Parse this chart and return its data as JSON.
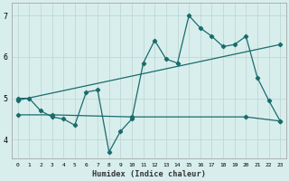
{
  "xlabel": "Humidex (Indice chaleur)",
  "bg_color": "#d8eeed",
  "grid_color": "#c0d8d5",
  "line_color": "#1a6b6b",
  "xlim": [
    -0.5,
    23.5
  ],
  "ylim": [
    3.55,
    7.3
  ],
  "xticks": [
    0,
    1,
    2,
    3,
    4,
    5,
    6,
    7,
    8,
    9,
    10,
    11,
    12,
    13,
    14,
    15,
    16,
    17,
    18,
    19,
    20,
    21,
    22,
    23
  ],
  "yticks": [
    4,
    5,
    6,
    7
  ],
  "zigzag_x": [
    0,
    1,
    2,
    3,
    4,
    5,
    6,
    7,
    8,
    9,
    10,
    11,
    12,
    13,
    14,
    15,
    16,
    17,
    18,
    19,
    20,
    21,
    22,
    23
  ],
  "zigzag_y": [
    5.0,
    5.0,
    4.7,
    4.55,
    4.5,
    4.35,
    5.15,
    5.2,
    3.7,
    4.2,
    4.5,
    5.85,
    6.4,
    5.95,
    5.85,
    7.0,
    6.7,
    6.5,
    6.25,
    6.3,
    6.5,
    5.5,
    4.95,
    4.45
  ],
  "trend_x": [
    0,
    23
  ],
  "trend_y": [
    4.95,
    6.3
  ],
  "flat_x": [
    0,
    3,
    10,
    20,
    23
  ],
  "flat_y": [
    4.6,
    4.6,
    4.55,
    4.55,
    4.45
  ]
}
